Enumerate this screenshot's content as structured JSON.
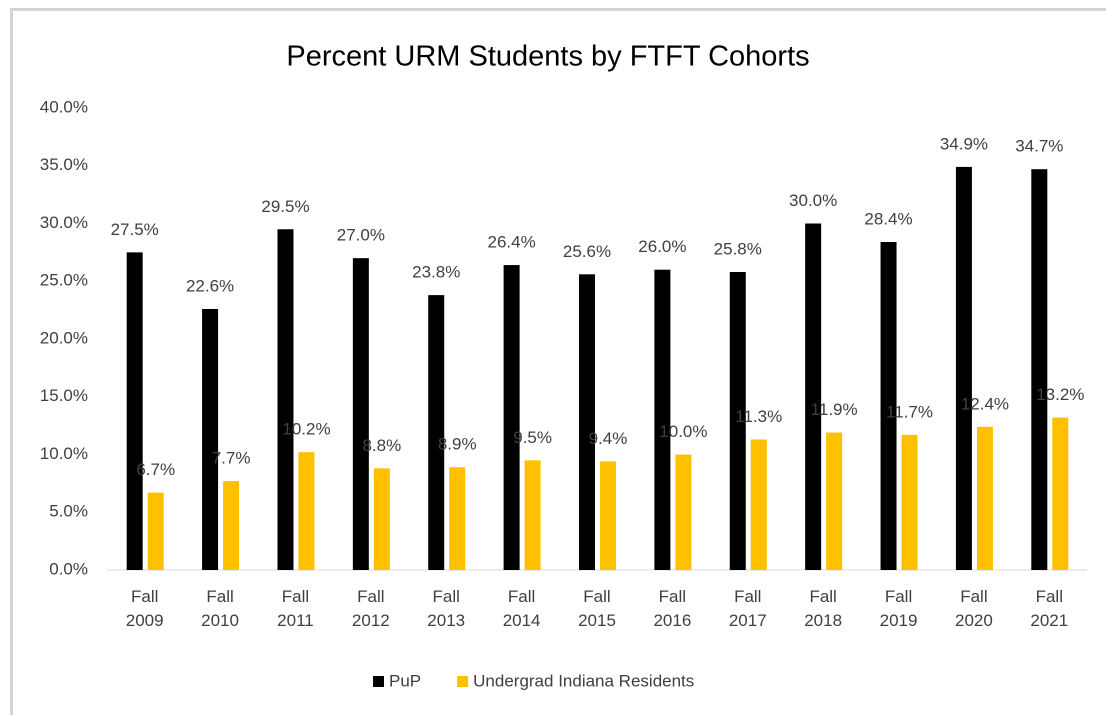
{
  "chart_data": {
    "type": "bar",
    "title": "Percent URM Students by FTFT Cohorts",
    "categories": [
      "Fall 2009",
      "Fall 2010",
      "Fall 2011",
      "Fall 2012",
      "Fall 2013",
      "Fall 2014",
      "Fall 2015",
      "Fall 2016",
      "Fall 2017",
      "Fall 2018",
      "Fall 2019",
      "Fall 2020",
      "Fall 2021"
    ],
    "series": [
      {
        "name": "PuP",
        "color": "#000000",
        "values": [
          27.5,
          22.6,
          29.5,
          27.0,
          23.8,
          26.4,
          25.6,
          26.0,
          25.8,
          30.0,
          28.4,
          34.9,
          34.7
        ],
        "value_labels": [
          "27.5%",
          "22.6%",
          "29.5%",
          "27.0%",
          "23.8%",
          "26.4%",
          "25.6%",
          "26.0%",
          "25.8%",
          "30.0%",
          "28.4%",
          "34.9%",
          "34.7%"
        ]
      },
      {
        "name": "Undergrad Indiana Residents",
        "color": "#ffc000",
        "values": [
          6.7,
          7.7,
          10.2,
          8.8,
          8.9,
          9.5,
          9.4,
          10.0,
          11.3,
          11.9,
          11.7,
          12.4,
          13.2
        ],
        "value_labels": [
          "6.7%",
          "7.7%",
          "10.2%",
          "8.8%",
          "8.9%",
          "9.5%",
          "9.4%",
          "10.0%",
          "11.3%",
          "11.9%",
          "11.7%",
          "12.4%",
          "13.2%"
        ]
      }
    ],
    "ylim": [
      0,
      40
    ],
    "yticks": [
      {
        "value": 0,
        "label": "0.0%"
      },
      {
        "value": 5,
        "label": "5.0%"
      },
      {
        "value": 10,
        "label": "10.0%"
      },
      {
        "value": 15,
        "label": "15.0%"
      },
      {
        "value": 20,
        "label": "20.0%"
      },
      {
        "value": 25,
        "label": "25.0%"
      },
      {
        "value": 30,
        "label": "30.0%"
      },
      {
        "value": 35,
        "label": "35.0%"
      },
      {
        "value": 40,
        "label": "40.0%"
      }
    ],
    "grid": false,
    "legend": "bottom"
  }
}
